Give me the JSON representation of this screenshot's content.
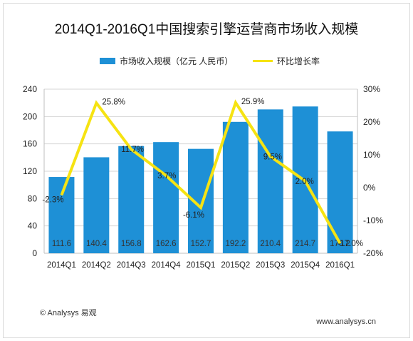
{
  "chart_data": {
    "type": "bar",
    "title": "2014Q1-2016Q1中国搜索引擎运营商市场收入规模",
    "categories": [
      "2014Q1",
      "2014Q2",
      "2014Q3",
      "2014Q4",
      "2015Q1",
      "2015Q2",
      "2015Q3",
      "2015Q4",
      "2016Q1"
    ],
    "series": [
      {
        "name": "市场收入规模（亿元 人民币）",
        "type": "bar",
        "axis": "left",
        "color": "#1e90d6",
        "values": [
          111.6,
          140.4,
          156.8,
          162.6,
          152.7,
          192.2,
          210.4,
          214.7,
          178.2
        ]
      },
      {
        "name": "环比增长率",
        "type": "line",
        "axis": "right",
        "color": "#f6e312",
        "values": [
          -2.3,
          25.8,
          11.7,
          3.7,
          -6.1,
          25.9,
          9.5,
          2.0,
          -17.0
        ]
      }
    ],
    "bar_labels": [
      "111.6",
      "140.4",
      "156.8",
      "162.6",
      "152.7",
      "192.2",
      "210.4",
      "214.7",
      "178.2"
    ],
    "growth_labels": [
      "-2.3%",
      "25.8%",
      "11.7%",
      "3.7%",
      "-6.1%",
      "25.9%",
      "9.5%",
      "2.0%",
      "-17.0%"
    ],
    "ylim_left": [
      0,
      240
    ],
    "yticks_left": [
      "0",
      "40",
      "80",
      "120",
      "160",
      "200",
      "240"
    ],
    "ylim_right": [
      -20,
      30
    ],
    "yticks_right": [
      "-20%",
      "-10%",
      "0%",
      "10%",
      "20%",
      "30%"
    ],
    "grid": true,
    "legend_position": "top"
  },
  "footer": {
    "source": "© Analysys 易观",
    "url": "www.analysys.cn"
  }
}
